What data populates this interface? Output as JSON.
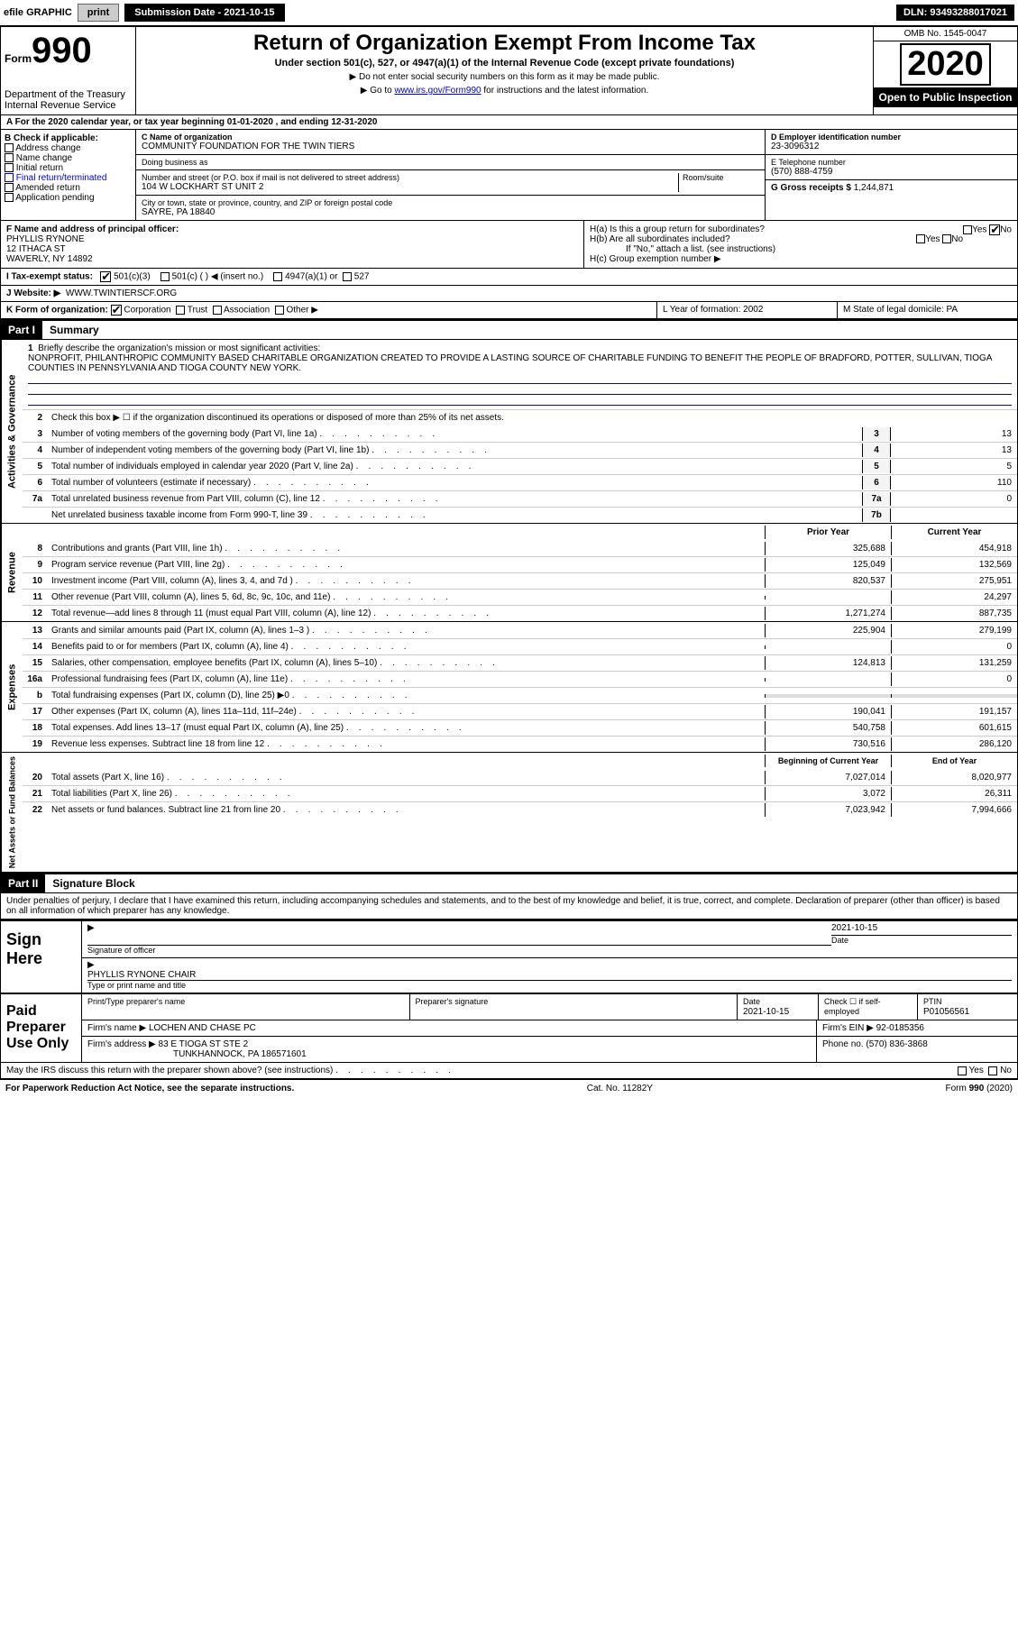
{
  "topbar": {
    "efile_label": "efile GRAPHIC",
    "print_btn": "print",
    "submission_label": "Submission Date - 2021-10-15",
    "dln_label": "DLN: 93493288017021"
  },
  "header": {
    "form_word": "Form",
    "form_num": "990",
    "dept1": "Department of the Treasury",
    "dept2": "Internal Revenue Service",
    "title": "Return of Organization Exempt From Income Tax",
    "subtitle": "Under section 501(c), 527, or 4947(a)(1) of the Internal Revenue Code (except private foundations)",
    "note1": "▶ Do not enter social security numbers on this form as it may be made public.",
    "note2_pre": "▶ Go to ",
    "note2_link": "www.irs.gov/Form990",
    "note2_post": " for instructions and the latest information.",
    "omb": "OMB No. 1545-0047",
    "year": "2020",
    "open_public": "Open to Public Inspection"
  },
  "rowA": "A For the 2020 calendar year, or tax year beginning 01-01-2020    , and ending 12-31-2020",
  "boxB": {
    "title": "B Check if applicable:",
    "opts": [
      "Address change",
      "Name change",
      "Initial return",
      "Final return/terminated",
      "Amended return",
      "Application pending"
    ]
  },
  "boxC": {
    "label_name": "C Name of organization",
    "org_name": "COMMUNITY FOUNDATION FOR THE TWIN TIERS",
    "dba_label": "Doing business as",
    "addr_label": "Number and street (or P.O. box if mail is not delivered to street address)",
    "room_label": "Room/suite",
    "addr": "104 W LOCKHART ST UNIT 2",
    "city_label": "City or town, state or province, country, and ZIP or foreign postal code",
    "city": "SAYRE, PA  18840"
  },
  "boxD": {
    "label": "D Employer identification number",
    "ein": "23-3096312",
    "tel_label": "E Telephone number",
    "tel": "(570) 888-4759",
    "gross_label": "G Gross receipts $",
    "gross": "1,244,871"
  },
  "boxF": {
    "label": "F  Name and address of principal officer:",
    "name": "PHYLLIS RYNONE",
    "addr1": "12 ITHACA ST",
    "addr2": "WAVERLY, NY  14892"
  },
  "boxH": {
    "ha": "H(a)  Is this a group return for subordinates?",
    "hb": "H(b)  Are all subordinates included?",
    "hb_note": "If \"No,\" attach a list. (see instructions)",
    "hc": "H(c)  Group exemption number ▶",
    "yes": "Yes",
    "no": "No"
  },
  "rowI": {
    "label": "I    Tax-exempt status:",
    "o1": "501(c)(3)",
    "o2": "501(c) (   ) ◀ (insert no.)",
    "o3": "4947(a)(1) or",
    "o4": "527"
  },
  "rowJ": {
    "label": "J   Website: ▶",
    "val": "WWW.TWINTIERSCF.ORG"
  },
  "rowK": {
    "label": "K Form of organization:",
    "o1": "Corporation",
    "o2": "Trust",
    "o3": "Association",
    "o4": "Other ▶"
  },
  "rowLM": {
    "l": "L Year of formation: 2002",
    "m": "M State of legal domicile: PA"
  },
  "part1": {
    "hdr": "Part I",
    "title": "Summary",
    "l1_label": "Briefly describe the organization's mission or most significant activities:",
    "l1_text": "NONPROFIT, PHILANTHROPIC COMMUNITY BASED CHARITABLE ORGANIZATION CREATED TO PROVIDE A LASTING SOURCE OF CHARITABLE FUNDING TO BENEFIT THE PEOPLE OF BRADFORD, POTTER, SULLIVAN, TIOGA COUNTIES IN PENNSYLVANIA AND TIOGA COUNTY NEW YORK.",
    "l2": "Check this box ▶ ☐  if the organization discontinued its operations or disposed of more than 25% of its net assets.",
    "vlabel_gov": "Activities & Governance",
    "vlabel_rev": "Revenue",
    "vlabel_exp": "Expenses",
    "vlabel_net": "Net Assets or Fund Balances",
    "col_prior": "Prior Year",
    "col_current": "Current Year",
    "col_begin": "Beginning of Current Year",
    "col_end": "End of Year",
    "gov_lines": [
      {
        "n": "3",
        "t": "Number of voting members of the governing body (Part VI, line 1a)",
        "box": "3",
        "v": "13"
      },
      {
        "n": "4",
        "t": "Number of independent voting members of the governing body (Part VI, line 1b)",
        "box": "4",
        "v": "13"
      },
      {
        "n": "5",
        "t": "Total number of individuals employed in calendar year 2020 (Part V, line 2a)",
        "box": "5",
        "v": "5"
      },
      {
        "n": "6",
        "t": "Total number of volunteers (estimate if necessary)",
        "box": "6",
        "v": "110"
      },
      {
        "n": "7a",
        "t": "Total unrelated business revenue from Part VIII, column (C), line 12",
        "box": "7a",
        "v": "0"
      },
      {
        "n": "",
        "t": "Net unrelated business taxable income from Form 990-T, line 39",
        "box": "7b",
        "v": ""
      }
    ],
    "rev_lines": [
      {
        "n": "8",
        "t": "Contributions and grants (Part VIII, line 1h)",
        "p": "325,688",
        "c": "454,918"
      },
      {
        "n": "9",
        "t": "Program service revenue (Part VIII, line 2g)",
        "p": "125,049",
        "c": "132,569"
      },
      {
        "n": "10",
        "t": "Investment income (Part VIII, column (A), lines 3, 4, and 7d )",
        "p": "820,537",
        "c": "275,951"
      },
      {
        "n": "11",
        "t": "Other revenue (Part VIII, column (A), lines 5, 6d, 8c, 9c, 10c, and 11e)",
        "p": "",
        "c": "24,297"
      },
      {
        "n": "12",
        "t": "Total revenue—add lines 8 through 11 (must equal Part VIII, column (A), line 12)",
        "p": "1,271,274",
        "c": "887,735"
      }
    ],
    "exp_lines": [
      {
        "n": "13",
        "t": "Grants and similar amounts paid (Part IX, column (A), lines 1–3 )",
        "p": "225,904",
        "c": "279,199"
      },
      {
        "n": "14",
        "t": "Benefits paid to or for members (Part IX, column (A), line 4)",
        "p": "",
        "c": "0"
      },
      {
        "n": "15",
        "t": "Salaries, other compensation, employee benefits (Part IX, column (A), lines 5–10)",
        "p": "124,813",
        "c": "131,259"
      },
      {
        "n": "16a",
        "t": "Professional fundraising fees (Part IX, column (A), line 11e)",
        "p": "",
        "c": "0"
      },
      {
        "n": "b",
        "t": "Total fundraising expenses (Part IX, column (D), line 25) ▶0",
        "p": "shade",
        "c": "shade"
      },
      {
        "n": "17",
        "t": "Other expenses (Part IX, column (A), lines 11a–11d, 11f–24e)",
        "p": "190,041",
        "c": "191,157"
      },
      {
        "n": "18",
        "t": "Total expenses. Add lines 13–17 (must equal Part IX, column (A), line 25)",
        "p": "540,758",
        "c": "601,615"
      },
      {
        "n": "19",
        "t": "Revenue less expenses. Subtract line 18 from line 12",
        "p": "730,516",
        "c": "286,120"
      }
    ],
    "net_lines": [
      {
        "n": "20",
        "t": "Total assets (Part X, line 16)",
        "p": "7,027,014",
        "c": "8,020,977"
      },
      {
        "n": "21",
        "t": "Total liabilities (Part X, line 26)",
        "p": "3,072",
        "c": "26,311"
      },
      {
        "n": "22",
        "t": "Net assets or fund balances. Subtract line 21 from line 20",
        "p": "7,023,942",
        "c": "7,994,666"
      }
    ]
  },
  "part2": {
    "hdr": "Part II",
    "title": "Signature Block",
    "decl": "Under penalties of perjury, I declare that I have examined this return, including accompanying schedules and statements, and to the best of my knowledge and belief, it is true, correct, and complete. Declaration of preparer (other than officer) is based on all information of which preparer has any knowledge.",
    "sign_here": "Sign Here",
    "sig_officer": "Signature of officer",
    "sig_date": "2021-10-15",
    "date_lbl": "Date",
    "officer_name": "PHYLLIS RYNONE  CHAIR",
    "type_name": "Type or print name and title",
    "paid_label": "Paid Preparer Use Only",
    "prep_name_lbl": "Print/Type preparer's name",
    "prep_sig_lbl": "Preparer's signature",
    "prep_date_lbl": "Date",
    "prep_date": "2021-10-15",
    "check_self": "Check ☐ if self-employed",
    "ptin_lbl": "PTIN",
    "ptin": "P01056561",
    "firm_name_lbl": "Firm's name    ▶",
    "firm_name": "LOCHEN AND CHASE PC",
    "firm_ein_lbl": "Firm's EIN ▶",
    "firm_ein": "92-0185356",
    "firm_addr_lbl": "Firm's address ▶",
    "firm_addr1": "83 E TIOGA ST STE 2",
    "firm_addr2": "TUNKHANNOCK, PA  186571601",
    "phone_lbl": "Phone no.",
    "phone": "(570) 836-3868",
    "discuss": "May the IRS discuss this return with the preparer shown above? (see instructions)",
    "yes": "Yes",
    "no": "No"
  },
  "footer": {
    "pra": "For Paperwork Reduction Act Notice, see the separate instructions.",
    "cat": "Cat. No. 11282Y",
    "form": "Form 990 (2020)"
  },
  "colors": {
    "link": "#0000cc",
    "black": "#000000",
    "shade": "#dddddd",
    "btn_gray": "#cccccc"
  }
}
